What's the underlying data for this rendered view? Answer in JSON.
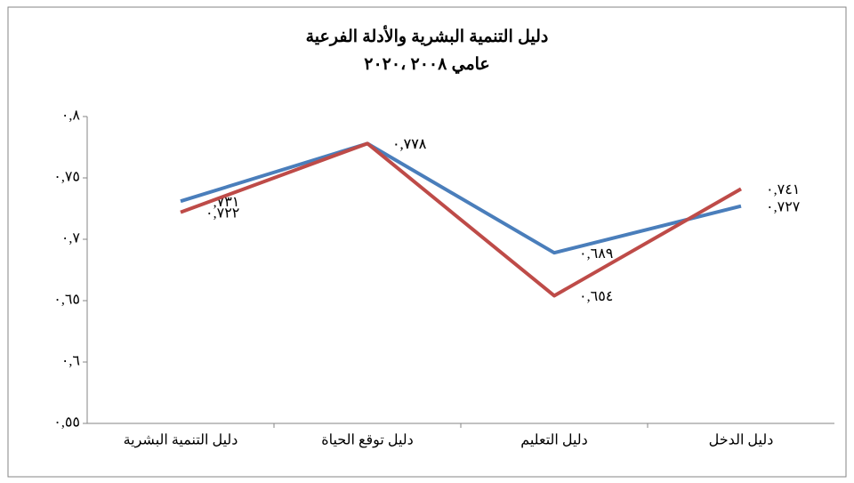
{
  "chart_data": {
    "type": "line",
    "title": "دليل التنمية البشرية والأدلة الفرعية",
    "subtitle": "عامي ٢٠٠٨ ،٢٠٢٠",
    "categories": [
      "دليل التنمية البشرية",
      "دليل توقع الحياة",
      "دليل التعليم",
      "دليل الدخل"
    ],
    "series": [
      {
        "color": "#4a7ebb",
        "values": [
          0.731,
          0.778,
          0.689,
          0.727
        ],
        "value_labels": [
          "٠,٧٣١",
          "٠,٧٧٨",
          "٠,٦٨٩",
          "٠,٧٢٧"
        ]
      },
      {
        "color": "#be4b48",
        "values": [
          0.722,
          0.778,
          0.654,
          0.741
        ],
        "value_labels": [
          "٠,٧٢٢",
          "٠,٧٧٨",
          "٠,٦٥٤",
          "٠,٧٤١"
        ]
      }
    ],
    "ylim": [
      0.55,
      0.8
    ],
    "yticks": [
      {
        "value": 0.55,
        "label": "٠,٥٥"
      },
      {
        "value": 0.6,
        "label": "٠,٦"
      },
      {
        "value": 0.65,
        "label": "٠,٦٥"
      },
      {
        "value": 0.7,
        "label": "٠,٧"
      },
      {
        "value": 0.75,
        "label": "٠,٧٥"
      },
      {
        "value": 0.8,
        "label": "٠,٨"
      }
    ],
    "grid": false
  }
}
